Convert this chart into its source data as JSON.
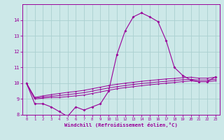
{
  "x": [
    0,
    1,
    2,
    3,
    4,
    5,
    6,
    7,
    8,
    9,
    10,
    11,
    12,
    13,
    14,
    15,
    16,
    17,
    18,
    19,
    20,
    21,
    22,
    23
  ],
  "main_line": [
    10.0,
    8.7,
    8.7,
    8.5,
    8.2,
    7.9,
    8.5,
    8.3,
    8.5,
    8.7,
    9.5,
    11.8,
    13.3,
    14.2,
    14.45,
    14.2,
    13.9,
    12.7,
    11.0,
    10.5,
    10.2,
    10.1,
    10.1,
    10.4
  ],
  "flat_lines": [
    [
      10.0,
      9.0,
      9.05,
      9.1,
      9.1,
      9.15,
      9.2,
      9.25,
      9.35,
      9.45,
      9.55,
      9.65,
      9.72,
      9.78,
      9.84,
      9.9,
      9.95,
      10.0,
      10.05,
      10.1,
      10.15,
      10.1,
      10.1,
      10.15
    ],
    [
      10.0,
      9.05,
      9.12,
      9.18,
      9.22,
      9.28,
      9.34,
      9.4,
      9.5,
      9.6,
      9.7,
      9.78,
      9.85,
      9.92,
      9.98,
      10.03,
      10.08,
      10.12,
      10.17,
      10.22,
      10.25,
      10.2,
      10.2,
      10.25
    ],
    [
      10.0,
      9.1,
      9.2,
      9.28,
      9.35,
      9.42,
      9.48,
      9.55,
      9.65,
      9.75,
      9.85,
      9.93,
      10.0,
      10.06,
      10.12,
      10.17,
      10.22,
      10.27,
      10.3,
      10.35,
      10.38,
      10.32,
      10.32,
      10.38
    ]
  ],
  "line_color": "#990099",
  "bg_color": "#cce8e8",
  "grid_color": "#aad0d0",
  "xlabel": "Windchill (Refroidissement éolien,°C)",
  "ylim": [
    8,
    15
  ],
  "xlim": [
    -0.5,
    23.5
  ],
  "yticks": [
    8,
    9,
    10,
    11,
    12,
    13,
    14
  ],
  "xticks": [
    0,
    1,
    2,
    3,
    4,
    5,
    6,
    7,
    8,
    9,
    10,
    11,
    12,
    13,
    14,
    15,
    16,
    17,
    18,
    19,
    20,
    21,
    22,
    23
  ]
}
